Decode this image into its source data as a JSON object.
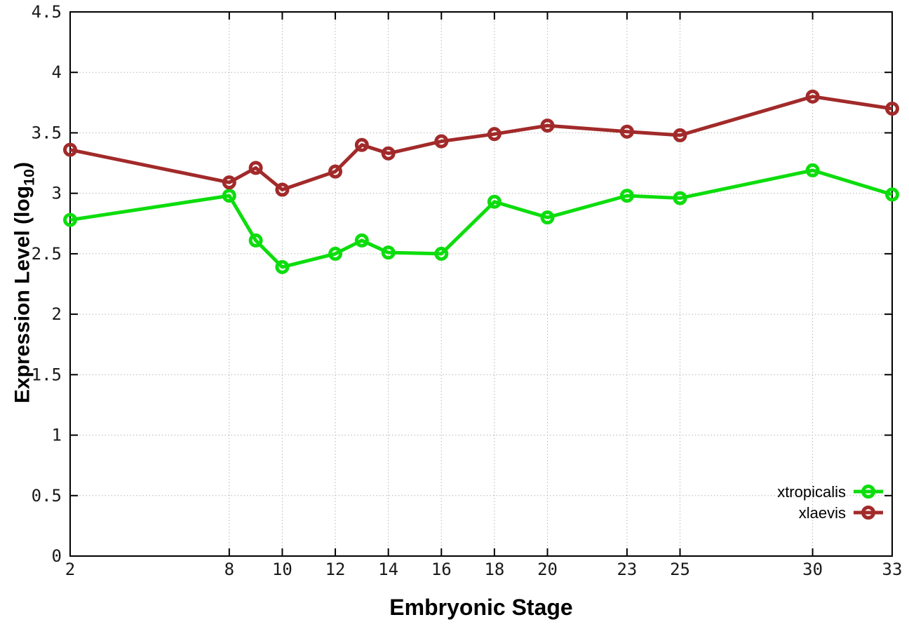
{
  "figure": {
    "xlabel": "Embryonic Stage",
    "ylabel_main": "Expression Level (log",
    "ylabel_sub": "10",
    "ylabel_close": ")"
  },
  "chart_data": {
    "type": "line",
    "title": "",
    "xlabel": "Embryonic Stage",
    "ylabel": "Expression Level (log10)",
    "xlim": [
      2,
      33
    ],
    "ylim": [
      0,
      4.5
    ],
    "xticks": [
      2,
      8,
      10,
      12,
      14,
      16,
      18,
      20,
      23,
      25,
      30,
      33
    ],
    "yticks": [
      0,
      0.5,
      1,
      1.5,
      2,
      2.5,
      3,
      3.5,
      4,
      4.5
    ],
    "grid": true,
    "legend_position": "inside bottom right",
    "marker": "open-circle",
    "x": [
      2,
      8,
      9,
      10,
      12,
      13,
      14,
      16,
      18,
      20,
      23,
      25,
      30,
      33
    ],
    "series": [
      {
        "name": "xtropicalis",
        "color": "#0ddd0d",
        "values": [
          2.78,
          2.98,
          2.61,
          2.39,
          2.5,
          2.61,
          2.51,
          2.5,
          2.93,
          2.8,
          2.98,
          2.96,
          3.19,
          2.99
        ]
      },
      {
        "name": "xlaevis",
        "color": "#a22a2a",
        "values": [
          3.36,
          3.09,
          3.21,
          3.03,
          3.18,
          3.4,
          3.33,
          3.43,
          3.49,
          3.56,
          3.51,
          3.48,
          3.8,
          3.7
        ]
      }
    ]
  }
}
